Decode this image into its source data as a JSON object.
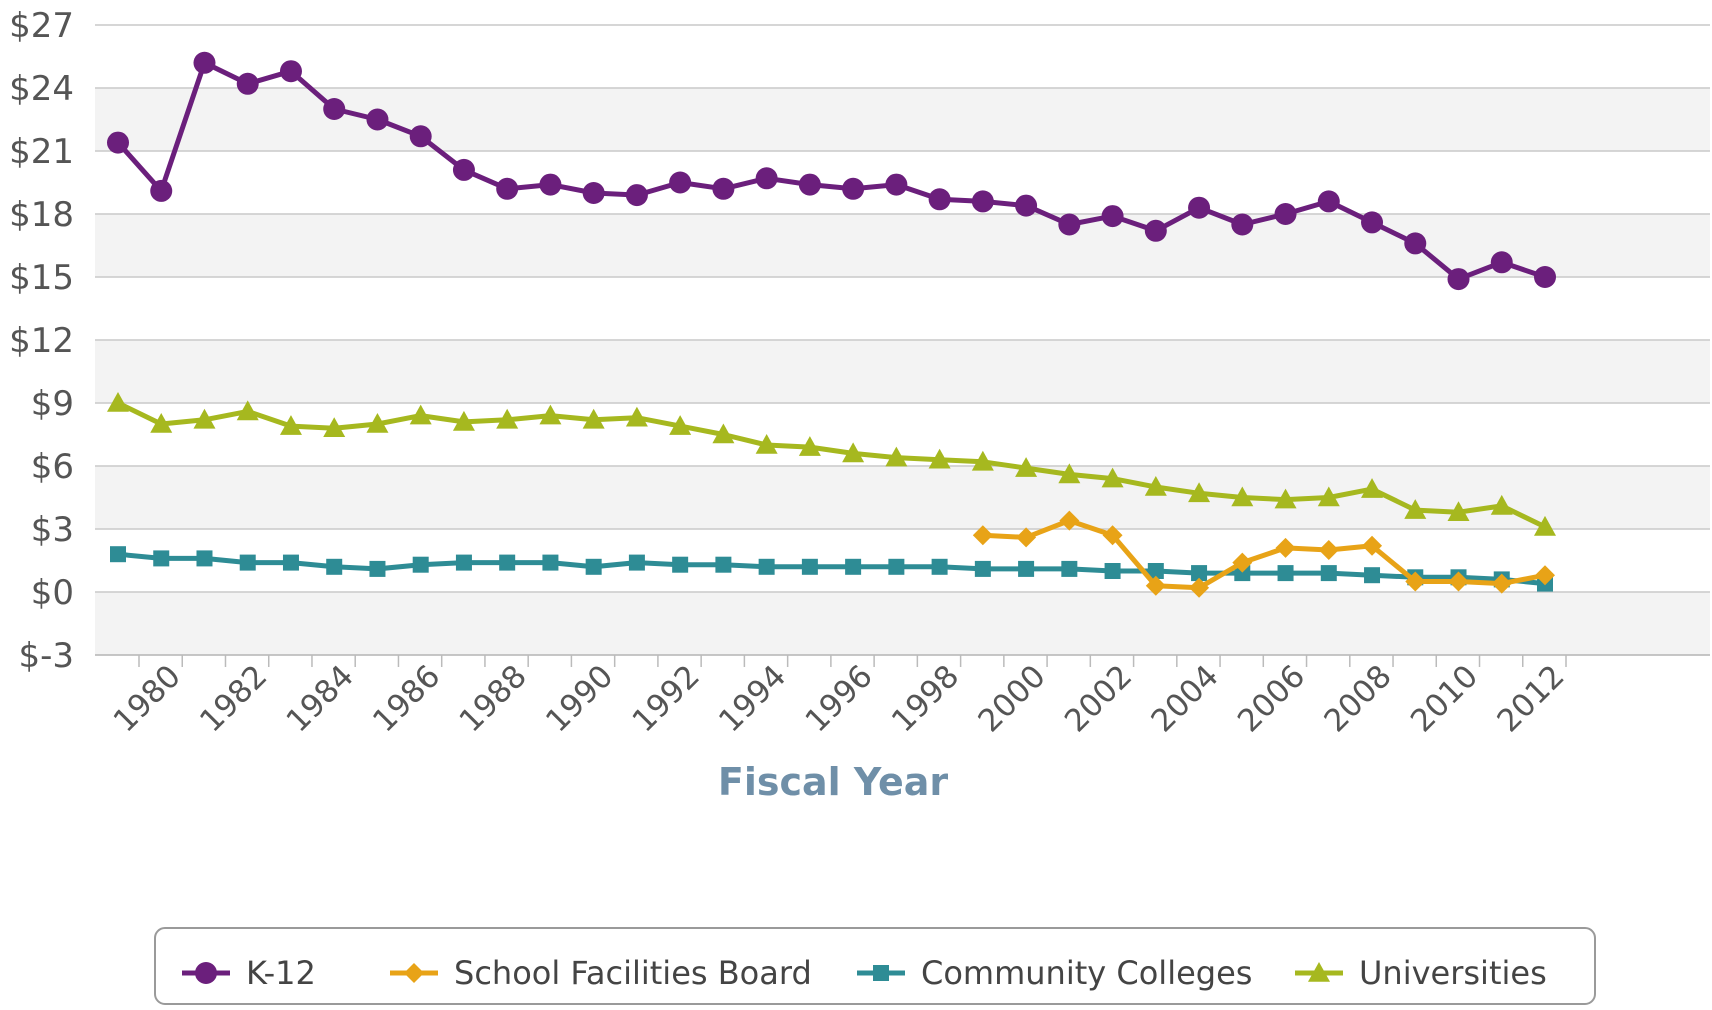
{
  "chart_data": {
    "type": "line",
    "title": "",
    "xlabel": "Fiscal Year",
    "ylabel": "",
    "ylim": [
      -3,
      27
    ],
    "yticks": [
      -3,
      0,
      3,
      6,
      9,
      12,
      15,
      18,
      21,
      24,
      27
    ],
    "ytick_labels": [
      "$-3",
      "$0",
      "$3",
      "$6",
      "$9",
      "$12",
      "$15",
      "$18",
      "$21",
      "$24",
      "$27"
    ],
    "xlim": [
      1979,
      2012
    ],
    "xtick_labels": [
      "1980",
      "1982",
      "1984",
      "1986",
      "1988",
      "1990",
      "1992",
      "1994",
      "1996",
      "1998",
      "2000",
      "2002",
      "2004",
      "2006",
      "2008",
      "2010",
      "2012"
    ],
    "x": [
      1979,
      1980,
      1981,
      1982,
      1983,
      1984,
      1985,
      1986,
      1987,
      1988,
      1989,
      1990,
      1991,
      1992,
      1993,
      1994,
      1995,
      1996,
      1997,
      1998,
      1999,
      2000,
      2001,
      2002,
      2003,
      2004,
      2005,
      2006,
      2007,
      2008,
      2009,
      2010,
      2011,
      2012
    ],
    "grid": true,
    "legend_position": "bottom",
    "series": [
      {
        "name": "K-12",
        "color": "#6b1f7c",
        "marker": "circle",
        "values": [
          21.4,
          19.1,
          25.2,
          24.2,
          24.8,
          23.0,
          22.5,
          21.7,
          20.1,
          19.2,
          19.4,
          19.0,
          18.9,
          19.5,
          19.2,
          19.7,
          19.4,
          19.2,
          19.4,
          18.7,
          18.6,
          18.4,
          17.5,
          17.9,
          17.2,
          18.3,
          17.5,
          18.0,
          18.6,
          17.6,
          16.6,
          14.9,
          15.7,
          15.0
        ]
      },
      {
        "name": "School Facilities Board",
        "color": "#e8a317",
        "marker": "diamond",
        "values": [
          null,
          null,
          null,
          null,
          null,
          null,
          null,
          null,
          null,
          null,
          null,
          null,
          null,
          null,
          null,
          null,
          null,
          null,
          null,
          null,
          2.7,
          2.6,
          3.4,
          2.7,
          0.3,
          0.2,
          1.4,
          2.1,
          2.0,
          2.2,
          0.5,
          0.5,
          0.4,
          0.8
        ]
      },
      {
        "name": "Community Colleges",
        "color": "#2e8c95",
        "marker": "square",
        "values": [
          1.8,
          1.6,
          1.6,
          1.4,
          1.4,
          1.2,
          1.1,
          1.3,
          1.4,
          1.4,
          1.4,
          1.2,
          1.4,
          1.3,
          1.3,
          1.2,
          1.2,
          1.2,
          1.2,
          1.2,
          1.1,
          1.1,
          1.1,
          1.0,
          1.0,
          0.9,
          0.9,
          0.9,
          0.9,
          0.8,
          0.7,
          0.7,
          0.6,
          0.4
        ]
      },
      {
        "name": "Universities",
        "color": "#a6b81f",
        "marker": "triangle",
        "values": [
          9.0,
          8.0,
          8.2,
          8.6,
          7.9,
          7.8,
          8.0,
          8.4,
          8.1,
          8.2,
          8.4,
          8.2,
          8.3,
          7.9,
          7.5,
          7.0,
          6.9,
          6.6,
          6.4,
          6.3,
          6.2,
          5.9,
          5.6,
          5.4,
          5.0,
          4.7,
          4.5,
          4.4,
          4.5,
          4.9,
          3.9,
          3.8,
          4.1,
          3.1
        ]
      }
    ]
  }
}
